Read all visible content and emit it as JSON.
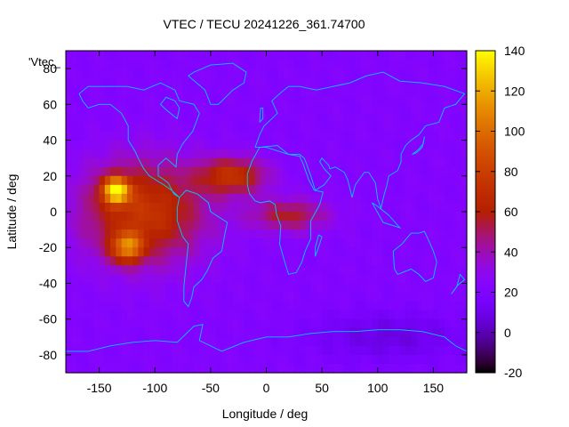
{
  "chart_data": {
    "type": "heatmap",
    "title": "VTEC / TECU 20241226_361.74700",
    "xlabel": "Longitude / deg",
    "ylabel": "Latitude / deg",
    "key_label": "'Vtec_",
    "xlim": [
      -180,
      180
    ],
    "ylim": [
      -90,
      90
    ],
    "x_ticks": [
      -150,
      -100,
      -50,
      0,
      50,
      100,
      150
    ],
    "y_ticks": [
      -80,
      -60,
      -40,
      -20,
      0,
      20,
      40,
      60,
      80
    ],
    "x_tick_labels": [
      "-150",
      "-100",
      "-50",
      "0",
      "50",
      "100",
      "150"
    ],
    "y_tick_labels": [
      "-80",
      "-60",
      "-40",
      "-20",
      "0",
      "20",
      "40",
      "60",
      "80"
    ],
    "colorbar": {
      "range": [
        -20,
        140
      ],
      "ticks": [
        -20,
        0,
        20,
        40,
        60,
        80,
        100,
        120,
        140
      ],
      "tick_labels": [
        "-20",
        "0",
        "20",
        "40",
        "60",
        "80",
        "100",
        "120",
        "140"
      ],
      "colormap": "gnuplot-rgbformulae-7-5-15"
    },
    "grid": false,
    "legend_position": "top-left",
    "overlay": "coastlines",
    "overlay_color": "#00c8ff",
    "field_description": {
      "background_value": 22,
      "features": [
        {
          "lon": -135,
          "lat": 12,
          "peak": 130,
          "width_lon": 12,
          "width_lat": 7
        },
        {
          "lon": -125,
          "lat": -20,
          "peak": 95,
          "width_lon": 14,
          "width_lat": 8
        },
        {
          "lon": -110,
          "lat": 0,
          "peak": 80,
          "width_lon": 55,
          "width_lat": 28
        },
        {
          "lon": -30,
          "lat": 20,
          "peak": 75,
          "width_lon": 30,
          "width_lat": 10
        },
        {
          "lon": 20,
          "lat": -2,
          "peak": 60,
          "width_lon": 35,
          "width_lat": 9
        },
        {
          "lon": 110,
          "lat": -70,
          "peak": 8,
          "width_lon": 70,
          "width_lat": 14
        }
      ]
    }
  }
}
